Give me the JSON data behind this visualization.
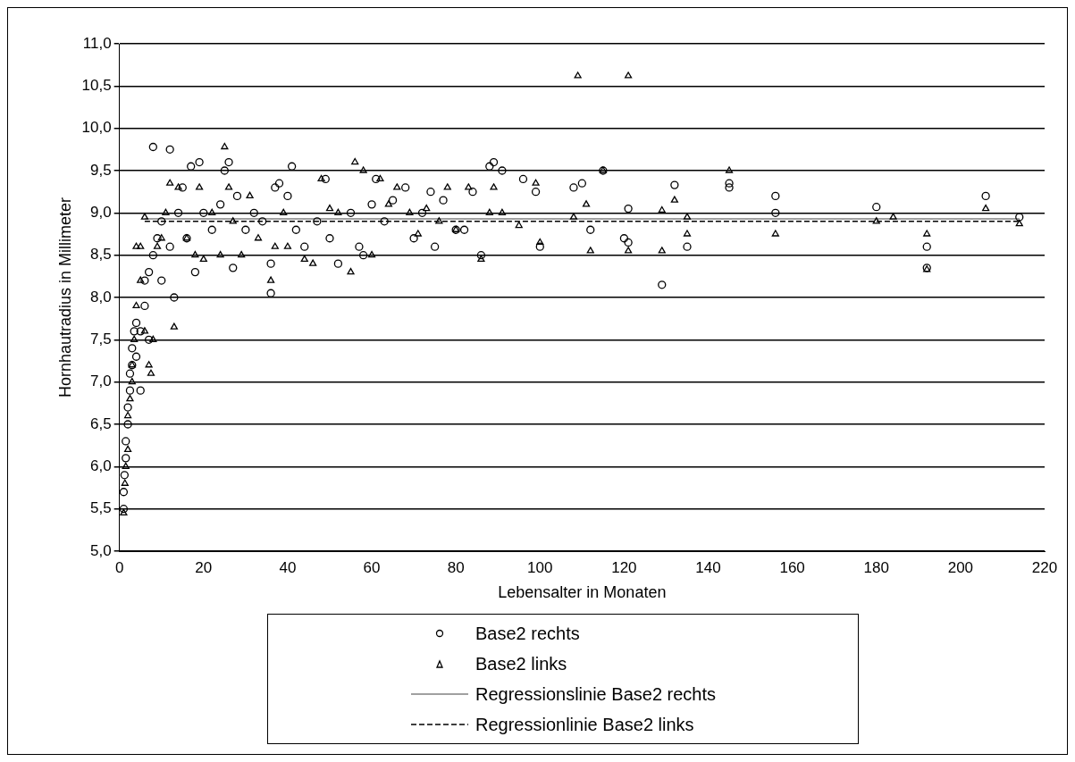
{
  "chart_data": {
    "type": "scatter",
    "xlabel": "Lebensalter in Monaten",
    "ylabel": "Hornhautradius in Millimeter",
    "xlim": [
      0,
      220
    ],
    "xticks": [
      0,
      20,
      40,
      60,
      80,
      100,
      120,
      140,
      160,
      180,
      200,
      220
    ],
    "ylim": [
      5,
      11
    ],
    "yticks": [
      {
        "value": 5,
        "label": "5,0"
      },
      {
        "value": 5.5,
        "label": "5,5"
      },
      {
        "value": 6,
        "label": "6,0"
      },
      {
        "value": 6.5,
        "label": "6,5"
      },
      {
        "value": 7,
        "label": "7,0"
      },
      {
        "value": 7.5,
        "label": "7,5"
      },
      {
        "value": 8,
        "label": "8,0"
      },
      {
        "value": 8.5,
        "label": "8,5"
      },
      {
        "value": 9,
        "label": "9,0"
      },
      {
        "value": 9.5,
        "label": "9,5"
      },
      {
        "value": 10,
        "label": "10,0"
      },
      {
        "value": 10.5,
        "label": "10,5"
      },
      {
        "value": 11,
        "label": "11,0"
      }
    ],
    "grid": "y",
    "legend": "bottom",
    "series": [
      {
        "name": "Base2 rechts",
        "type": "scatter",
        "marker": "circle",
        "color": "#000000",
        "x": [
          1,
          1,
          1.2,
          1.5,
          1.5,
          2,
          2,
          2.5,
          2.5,
          3,
          3,
          3.5,
          4,
          4,
          5,
          5,
          6,
          6,
          7,
          7,
          8,
          8,
          9,
          10,
          10,
          12,
          12,
          13,
          14,
          15,
          16,
          17,
          18,
          19,
          20,
          22,
          24,
          25,
          26,
          27,
          28,
          30,
          32,
          34,
          36,
          36,
          37,
          38,
          40,
          41,
          42,
          44,
          47,
          49,
          50,
          52,
          55,
          57,
          58,
          60,
          61,
          63,
          65,
          68,
          70,
          72,
          74,
          75,
          77,
          80,
          82,
          84,
          86,
          88,
          89,
          91,
          96,
          99,
          100,
          108,
          110,
          112,
          115,
          120,
          121,
          121,
          129,
          132,
          135,
          145,
          145,
          156,
          156,
          180,
          192,
          192,
          206,
          214
        ],
        "values": [
          5.5,
          5.7,
          5.9,
          6.1,
          6.3,
          6.5,
          6.7,
          6.9,
          7.1,
          7.2,
          7.4,
          7.6,
          7.7,
          7.3,
          6.9,
          7.6,
          7.9,
          8.2,
          8.3,
          7.5,
          9.78,
          8.5,
          8.7,
          8.2,
          8.9,
          9.75,
          8.6,
          8.0,
          9.0,
          9.3,
          8.7,
          9.55,
          8.3,
          9.6,
          9.0,
          8.8,
          9.1,
          9.5,
          9.6,
          8.35,
          9.2,
          8.8,
          9.0,
          8.9,
          8.05,
          8.4,
          9.3,
          9.35,
          9.2,
          9.55,
          8.8,
          8.6,
          8.9,
          9.4,
          8.7,
          8.4,
          9.0,
          8.6,
          8.5,
          9.1,
          9.4,
          8.9,
          9.15,
          9.3,
          8.7,
          9.0,
          9.25,
          8.6,
          9.15,
          8.8,
          8.8,
          9.25,
          8.5,
          9.55,
          9.6,
          9.5,
          9.4,
          9.25,
          8.6,
          9.3,
          9.35,
          8.8,
          9.5,
          8.7,
          9.05,
          8.65,
          8.15,
          9.33,
          8.6,
          9.3,
          9.35,
          9.2,
          9.0,
          9.07,
          8.6,
          8.35,
          9.2,
          8.95
        ]
      },
      {
        "name": "Base2 links",
        "type": "scatter",
        "marker": "triangle",
        "color": "#000000",
        "x": [
          1,
          1.3,
          1.5,
          2,
          2,
          2.5,
          3,
          3,
          3.5,
          4,
          4,
          5,
          5,
          6,
          6,
          7,
          7.5,
          8,
          9,
          10,
          11,
          12,
          13,
          14,
          16,
          18,
          19,
          20,
          22,
          24,
          25,
          26,
          27,
          29,
          31,
          33,
          36,
          37,
          39,
          40,
          44,
          46,
          48,
          50,
          52,
          55,
          56,
          58,
          60,
          62,
          64,
          66,
          69,
          71,
          73,
          76,
          78,
          80,
          83,
          86,
          88,
          89,
          91,
          95,
          99,
          100,
          108,
          109,
          111,
          112,
          115,
          121,
          121,
          129,
          129,
          132,
          135,
          135,
          145,
          156,
          180,
          184,
          192,
          192,
          206,
          214
        ],
        "values": [
          5.45,
          5.8,
          6.0,
          6.2,
          6.6,
          6.8,
          7.0,
          7.2,
          7.5,
          7.9,
          8.6,
          8.2,
          8.6,
          8.95,
          7.6,
          7.2,
          7.1,
          7.5,
          8.6,
          8.7,
          9.0,
          9.35,
          7.65,
          9.3,
          8.7,
          8.5,
          9.3,
          8.45,
          9.0,
          8.5,
          9.78,
          9.3,
          8.9,
          8.5,
          9.2,
          8.7,
          8.2,
          8.6,
          9.0,
          8.6,
          8.45,
          8.4,
          9.4,
          9.05,
          9.0,
          8.3,
          9.6,
          9.5,
          8.5,
          9.4,
          9.1,
          9.3,
          9.0,
          8.75,
          9.05,
          8.9,
          9.3,
          8.8,
          9.3,
          8.45,
          9.0,
          9.3,
          9.0,
          8.85,
          9.35,
          8.65,
          8.95,
          10.62,
          9.1,
          8.55,
          9.5,
          10.62,
          8.55,
          8.55,
          9.03,
          9.15,
          8.75,
          8.95,
          9.5,
          8.75,
          8.9,
          8.95,
          8.75,
          8.33,
          9.05,
          8.87
        ]
      },
      {
        "name": "Regressionslinie Base2 rechts",
        "type": "line",
        "line_style": "solid",
        "color": "#808080",
        "x": [
          6,
          214
        ],
        "values": [
          8.93,
          8.93
        ]
      },
      {
        "name": "Regressionlinie Base2 links",
        "type": "line",
        "line_style": "dashed",
        "color": "#000000",
        "x": [
          6,
          214
        ],
        "values": [
          8.9,
          8.9
        ]
      }
    ]
  }
}
